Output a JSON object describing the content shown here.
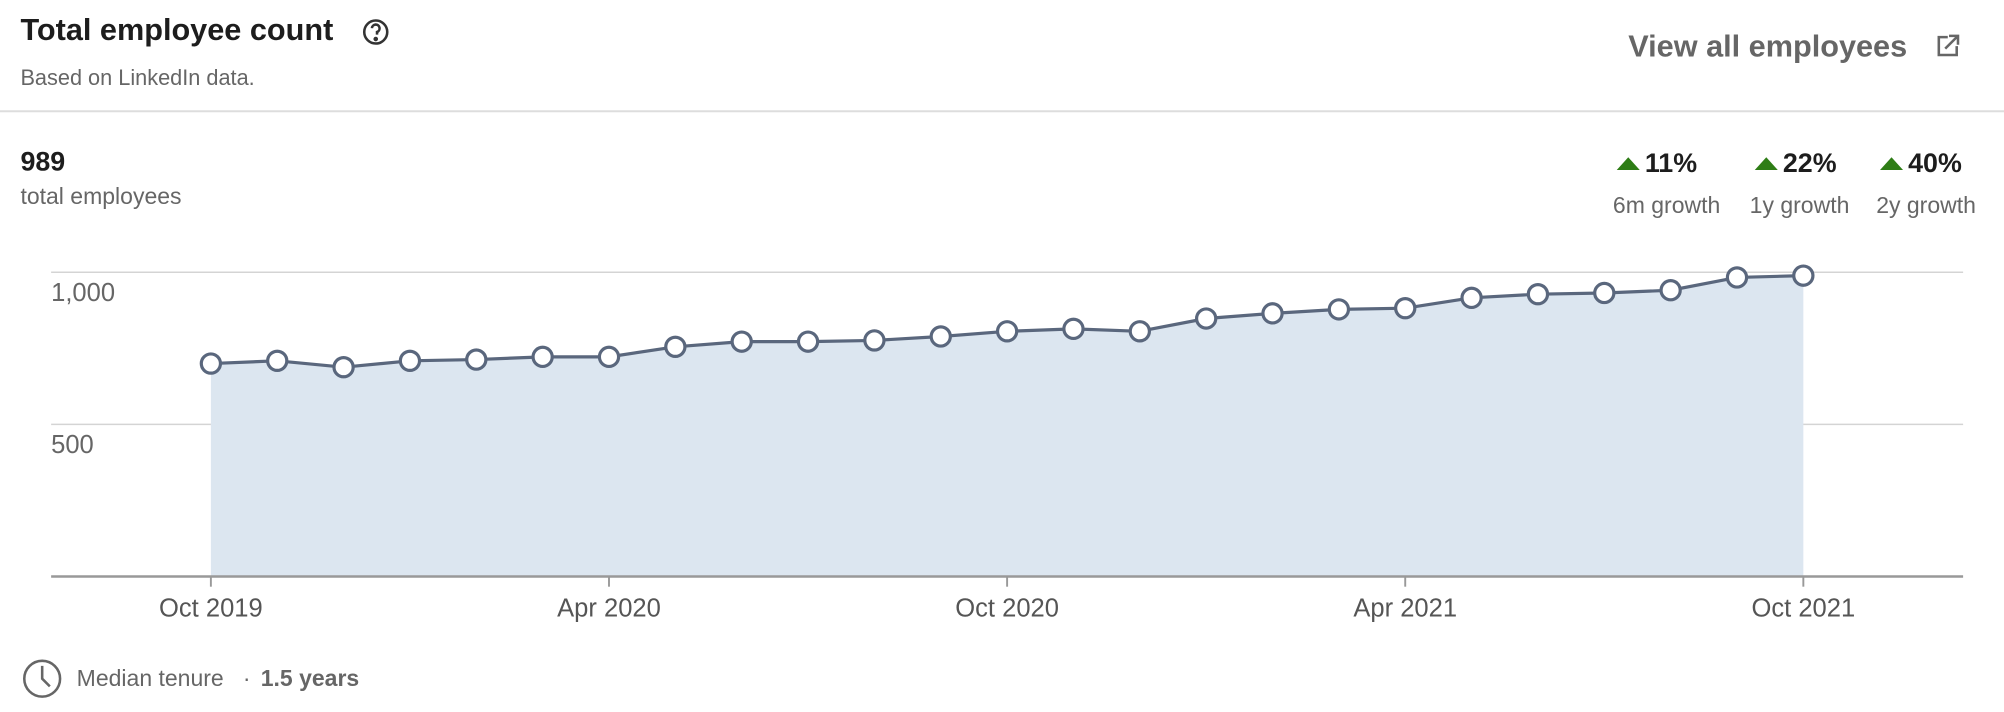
{
  "header": {
    "title": "Total employee count",
    "subtitle": "Based on LinkedIn data.",
    "link": "View all employees"
  },
  "summary": {
    "total": 989,
    "total_label": "total employees",
    "growth": [
      {
        "value": "11%",
        "period": "6m growth"
      },
      {
        "value": "22%",
        "period": "1y growth"
      },
      {
        "value": "40%",
        "period": "2y growth"
      }
    ]
  },
  "chart_data": {
    "type": "line",
    "area": true,
    "color": "#5a677d",
    "fill_color": "#dce6f0",
    "categories": [
      "Oct 2019",
      null,
      null,
      null,
      null,
      null,
      "Apr 2020",
      null,
      null,
      null,
      null,
      null,
      "Oct 2020",
      null,
      null,
      null,
      null,
      null,
      "Apr 2021",
      null,
      null,
      null,
      null,
      null,
      "Oct 2021"
    ],
    "values": [
      700,
      709,
      688,
      709,
      713,
      722,
      722,
      755,
      772,
      772,
      776,
      789,
      806,
      814,
      806,
      848,
      865,
      878,
      882,
      916,
      928,
      932,
      941,
      983,
      989
    ],
    "ylim": [
      0,
      1000
    ],
    "yticks": [
      500,
      {
        "value": 1000,
        "label": "1,000"
      }
    ],
    "grid": true
  },
  "footer": {
    "label": "Median tenure",
    "separator": "·",
    "value": "1.5 years"
  }
}
